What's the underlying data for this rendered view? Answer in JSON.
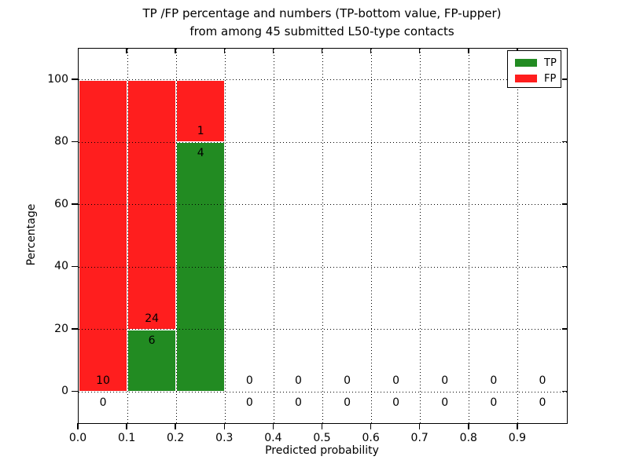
{
  "chart_data": {
    "type": "bar",
    "stacked": true,
    "title": "TP /FP percentage and numbers (TP-bottom value, FP-upper)\nfrom among 45 submitted L50-type contacts",
    "title_line1": "TP /FP percentage and numbers (TP-bottom value, FP-upper)",
    "title_line2": "from among 45 submitted L50-type contacts",
    "xlabel": "Predicted probability",
    "ylabel": "Percentage",
    "xlim": [
      0.0,
      1.0
    ],
    "ylim": [
      -10,
      110
    ],
    "bar_width": 0.1,
    "bin_centers": [
      0.05,
      0.15,
      0.25,
      0.35,
      0.45,
      0.55,
      0.65,
      0.75,
      0.85,
      0.95
    ],
    "xtick_labels": [
      "0.0",
      "0.1",
      "0.2",
      "0.3",
      "0.4",
      "0.5",
      "0.6",
      "0.7",
      "0.8",
      "0.9"
    ],
    "ytick_values": [
      0,
      20,
      40,
      60,
      80,
      100
    ],
    "ytick_labels": [
      "0",
      "20",
      "40",
      "60",
      "80",
      "100"
    ],
    "grid": true,
    "grid_style": "dotted",
    "legend_position": "upper right",
    "total_contacts": 45,
    "annotation_rule": "TP count shown below segment boundary, FP count shown above",
    "series": [
      {
        "name": "TP",
        "color": "#228b22",
        "percent": [
          0,
          20,
          80,
          0,
          0,
          0,
          0,
          0,
          0,
          0
        ],
        "counts": [
          0,
          6,
          4,
          0,
          0,
          0,
          0,
          0,
          0,
          0
        ]
      },
      {
        "name": "FP",
        "color": "#ff1e1e",
        "percent": [
          100,
          80,
          20,
          0,
          0,
          0,
          0,
          0,
          0,
          0
        ],
        "counts": [
          10,
          24,
          1,
          0,
          0,
          0,
          0,
          0,
          0,
          0
        ]
      }
    ],
    "axis_color": "#000000",
    "background_color": "#ffffff"
  }
}
